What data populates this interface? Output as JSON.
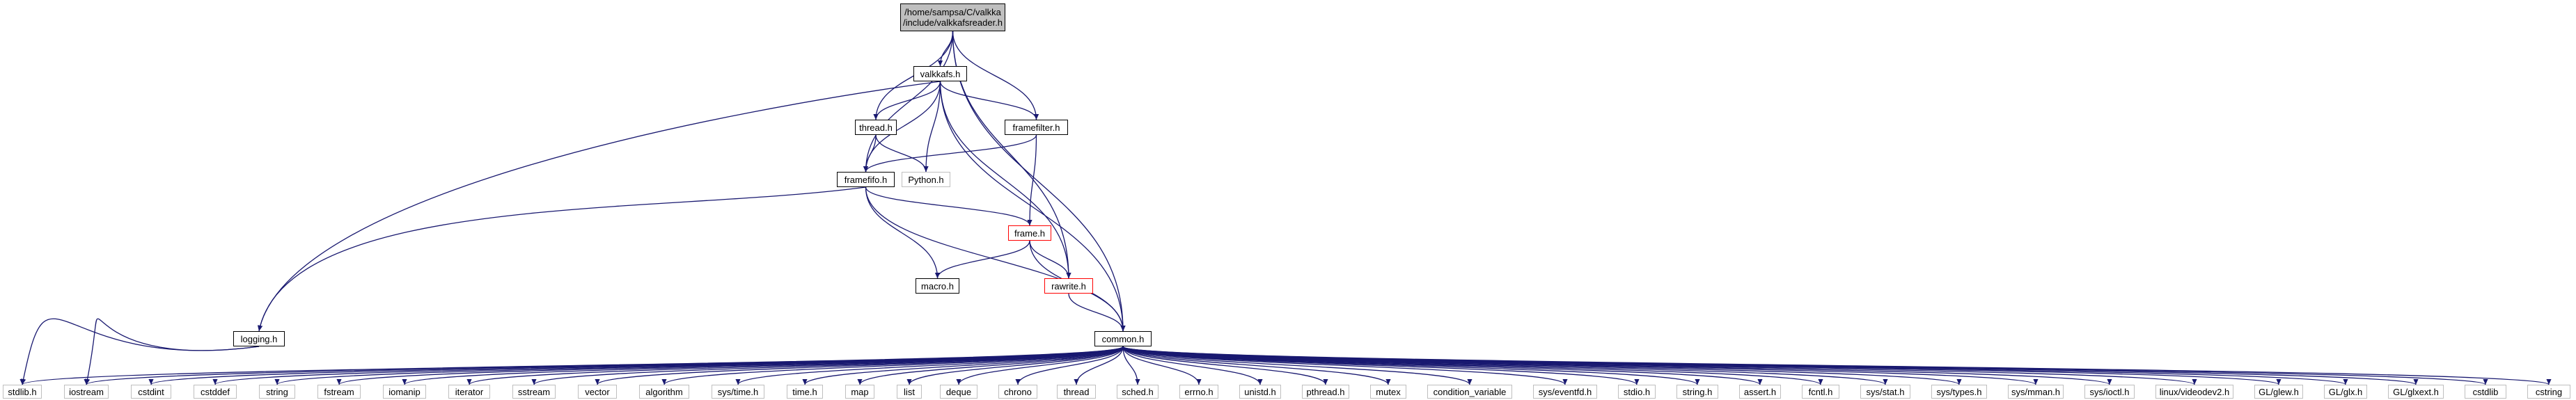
{
  "diagram": {
    "colors": {
      "edge": "#191970",
      "root_fill": "#bfbfbf",
      "truncated_border": "#ff0000",
      "node_border": "#000000",
      "external_border": "#bfbfbf"
    },
    "nodes": {
      "root": {
        "line1": "/home/sampsa/C/valkka",
        "line2": "/include/valkkafsreader.h"
      },
      "valkkafs": {
        "label": "valkkafs.h"
      },
      "thread": {
        "label": "thread.h"
      },
      "framefilter": {
        "label": "framefilter.h"
      },
      "python": {
        "label": "Python.h"
      },
      "framefifo": {
        "label": "framefifo.h"
      },
      "frame": {
        "label": "frame.h"
      },
      "macro": {
        "label": "macro.h"
      },
      "rawrite": {
        "label": "rawrite.h"
      },
      "logging": {
        "label": "logging.h"
      },
      "common": {
        "label": "common.h"
      },
      "stdlib_h": {
        "label": "stdlib.h"
      },
      "iostream": {
        "label": "iostream"
      },
      "cstdint": {
        "label": "cstdint"
      },
      "cstddef": {
        "label": "cstddef"
      },
      "string": {
        "label": "string"
      },
      "fstream": {
        "label": "fstream"
      },
      "iomanip": {
        "label": "iomanip"
      },
      "iterator": {
        "label": "iterator"
      },
      "sstream": {
        "label": "sstream"
      },
      "vector": {
        "label": "vector"
      },
      "algorithm": {
        "label": "algorithm"
      },
      "sys_time": {
        "label": "sys/time.h"
      },
      "time_h": {
        "label": "time.h"
      },
      "map": {
        "label": "map"
      },
      "list": {
        "label": "list"
      },
      "deque": {
        "label": "deque"
      },
      "chrono": {
        "label": "chrono"
      },
      "thread_std": {
        "label": "thread"
      },
      "sched": {
        "label": "sched.h"
      },
      "errno": {
        "label": "errno.h"
      },
      "unistd": {
        "label": "unistd.h"
      },
      "pthread": {
        "label": "pthread.h"
      },
      "mutex": {
        "label": "mutex"
      },
      "condvar": {
        "label": "condition_variable"
      },
      "eventfd": {
        "label": "sys/eventfd.h"
      },
      "stdio": {
        "label": "stdio.h"
      },
      "string_h": {
        "label": "string.h"
      },
      "assert": {
        "label": "assert.h"
      },
      "fcntl": {
        "label": "fcntl.h"
      },
      "sys_stat": {
        "label": "sys/stat.h"
      },
      "sys_types": {
        "label": "sys/types.h"
      },
      "sys_mman": {
        "label": "sys/mman.h"
      },
      "sys_ioctl": {
        "label": "sys/ioctl.h"
      },
      "videodev2": {
        "label": "linux/videodev2.h"
      },
      "glew": {
        "label": "GL/glew.h"
      },
      "glx": {
        "label": "GL/glx.h"
      },
      "glxext": {
        "label": "GL/glxext.h"
      },
      "cstdlib": {
        "label": "cstdlib"
      },
      "cstring": {
        "label": "cstring"
      }
    },
    "edges": [
      [
        "root",
        "valkkafs"
      ],
      [
        "root",
        "thread"
      ],
      [
        "root",
        "framefilter"
      ],
      [
        "root",
        "framefifo"
      ],
      [
        "root",
        "rawrite"
      ],
      [
        "root",
        "common"
      ],
      [
        "valkkafs",
        "thread"
      ],
      [
        "valkkafs",
        "framefilter"
      ],
      [
        "valkkafs",
        "framefifo"
      ],
      [
        "valkkafs",
        "python"
      ],
      [
        "valkkafs",
        "logging"
      ],
      [
        "valkkafs",
        "rawrite"
      ],
      [
        "valkkafs",
        "common"
      ],
      [
        "thread",
        "framefifo"
      ],
      [
        "thread",
        "python"
      ],
      [
        "framefilter",
        "framefifo"
      ],
      [
        "framefilter",
        "frame"
      ],
      [
        "framefifo",
        "frame"
      ],
      [
        "framefifo",
        "macro"
      ],
      [
        "framefifo",
        "logging"
      ],
      [
        "framefifo",
        "common"
      ],
      [
        "frame",
        "macro"
      ],
      [
        "frame",
        "rawrite"
      ],
      [
        "frame",
        "common"
      ],
      [
        "rawrite",
        "common"
      ],
      [
        "logging",
        "stdlib_h"
      ],
      [
        "logging",
        "iostream"
      ],
      [
        "common",
        "stdlib_h"
      ],
      [
        "common",
        "iostream"
      ],
      [
        "common",
        "cstdint"
      ],
      [
        "common",
        "cstddef"
      ],
      [
        "common",
        "string"
      ],
      [
        "common",
        "fstream"
      ],
      [
        "common",
        "iomanip"
      ],
      [
        "common",
        "iterator"
      ],
      [
        "common",
        "sstream"
      ],
      [
        "common",
        "vector"
      ],
      [
        "common",
        "algorithm"
      ],
      [
        "common",
        "sys_time"
      ],
      [
        "common",
        "time_h"
      ],
      [
        "common",
        "map"
      ],
      [
        "common",
        "list"
      ],
      [
        "common",
        "deque"
      ],
      [
        "common",
        "chrono"
      ],
      [
        "common",
        "thread_std"
      ],
      [
        "common",
        "sched"
      ],
      [
        "common",
        "errno"
      ],
      [
        "common",
        "unistd"
      ],
      [
        "common",
        "pthread"
      ],
      [
        "common",
        "mutex"
      ],
      [
        "common",
        "condvar"
      ],
      [
        "common",
        "eventfd"
      ],
      [
        "common",
        "stdio"
      ],
      [
        "common",
        "string_h"
      ],
      [
        "common",
        "assert"
      ],
      [
        "common",
        "fcntl"
      ],
      [
        "common",
        "sys_stat"
      ],
      [
        "common",
        "sys_types"
      ],
      [
        "common",
        "sys_mman"
      ],
      [
        "common",
        "sys_ioctl"
      ],
      [
        "common",
        "videodev2"
      ],
      [
        "common",
        "glew"
      ],
      [
        "common",
        "glx"
      ],
      [
        "common",
        "glxext"
      ],
      [
        "common",
        "cstdlib"
      ],
      [
        "common",
        "cstring"
      ]
    ]
  }
}
